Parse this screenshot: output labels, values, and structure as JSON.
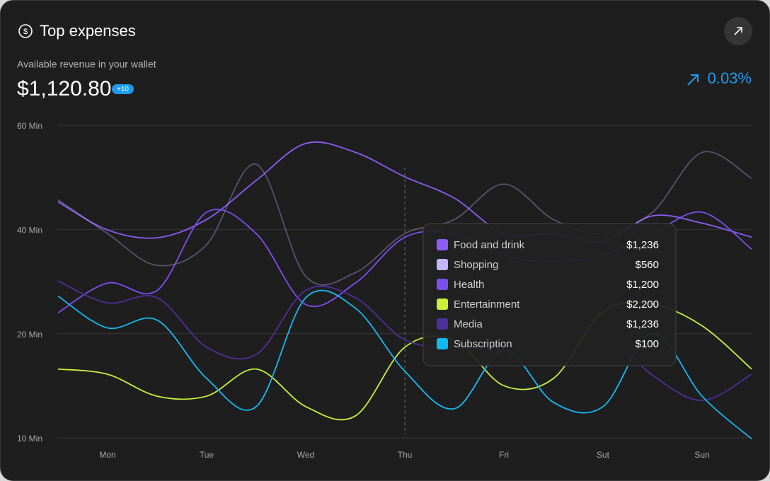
{
  "header": {
    "title": "Top expenses",
    "subtitle": "Available revenue in your wallet",
    "amount": "$1,120.80",
    "badge": "+10",
    "change": "0.03%"
  },
  "chart_data": {
    "type": "line",
    "x": [
      0,
      0.5,
      1,
      1.5,
      2,
      2.5,
      3,
      3.5,
      4,
      4.5,
      5,
      5.5,
      6,
      6.5,
      7
    ],
    "xlim": [
      0,
      7
    ],
    "xticks": [
      {
        "value": 0.5,
        "label": "Mon"
      },
      {
        "value": 1.5,
        "label": "Tue"
      },
      {
        "value": 2.5,
        "label": "Wed"
      },
      {
        "value": 3.5,
        "label": "Thu"
      },
      {
        "value": 4.5,
        "label": "Fri"
      },
      {
        "value": 5.5,
        "label": "Sut"
      },
      {
        "value": 6.5,
        "label": "Sun"
      }
    ],
    "ylim": [
      10,
      60
    ],
    "yticks": [
      {
        "value": 60,
        "label": "60 Min"
      },
      {
        "value": 40,
        "label": "40 Min"
      },
      {
        "value": 20,
        "label": "20 Min"
      },
      {
        "value": 10,
        "label": "10 Min"
      }
    ],
    "grid": true,
    "series": [
      {
        "name": "Food and drink",
        "color": "#8b5cf6",
        "values": [
          45.3,
          39.9,
          38.4,
          41.9,
          49.4,
          56.5,
          54.8,
          50.1,
          46.0,
          39.2,
          39.2,
          37.8,
          42.6,
          41.2,
          38.5
        ]
      },
      {
        "name": "Shopping",
        "color": "#c4b5fd",
        "values": [
          45.7,
          39.2,
          33.1,
          37.1,
          52.5,
          31.0,
          31.7,
          39.2,
          41.9,
          48.7,
          41.9,
          39.2,
          43.3,
          54.8,
          49.8
        ]
      },
      {
        "name": "Health",
        "color": "#7c4ff0",
        "values": [
          24.0,
          29.7,
          28.3,
          43.3,
          39.2,
          25.6,
          29.7,
          38.5,
          39.2,
          35.1,
          33.7,
          35.1,
          39.2,
          43.3,
          36.2
        ]
      },
      {
        "name": "Entertainment",
        "color": "#c8f03a",
        "values": [
          16.6,
          16.1,
          14.0,
          14.0,
          16.6,
          13.0,
          12.1,
          18.7,
          19.4,
          15.0,
          15.7,
          24.2,
          25.6,
          21.5,
          16.6
        ]
      },
      {
        "name": "Media",
        "color": "#4b2f9c",
        "values": [
          30.1,
          25.9,
          26.9,
          18.7,
          18.0,
          28.3,
          26.9,
          19.4,
          18.7,
          18.7,
          19.4,
          20.1,
          16.0,
          13.6,
          16.1
        ]
      },
      {
        "name": "Subscription",
        "color": "#12b8f0",
        "values": [
          27.2,
          21.1,
          22.6,
          15.7,
          13.0,
          26.9,
          24.9,
          16.4,
          12.8,
          18.4,
          13.4,
          13.0,
          20.1,
          14.0,
          9.9
        ]
      }
    ],
    "tooltip": {
      "x": 3.5,
      "values": [
        "$1,236",
        "$560",
        "$1,200",
        "$2,200",
        "$1,236",
        "$100"
      ]
    }
  }
}
